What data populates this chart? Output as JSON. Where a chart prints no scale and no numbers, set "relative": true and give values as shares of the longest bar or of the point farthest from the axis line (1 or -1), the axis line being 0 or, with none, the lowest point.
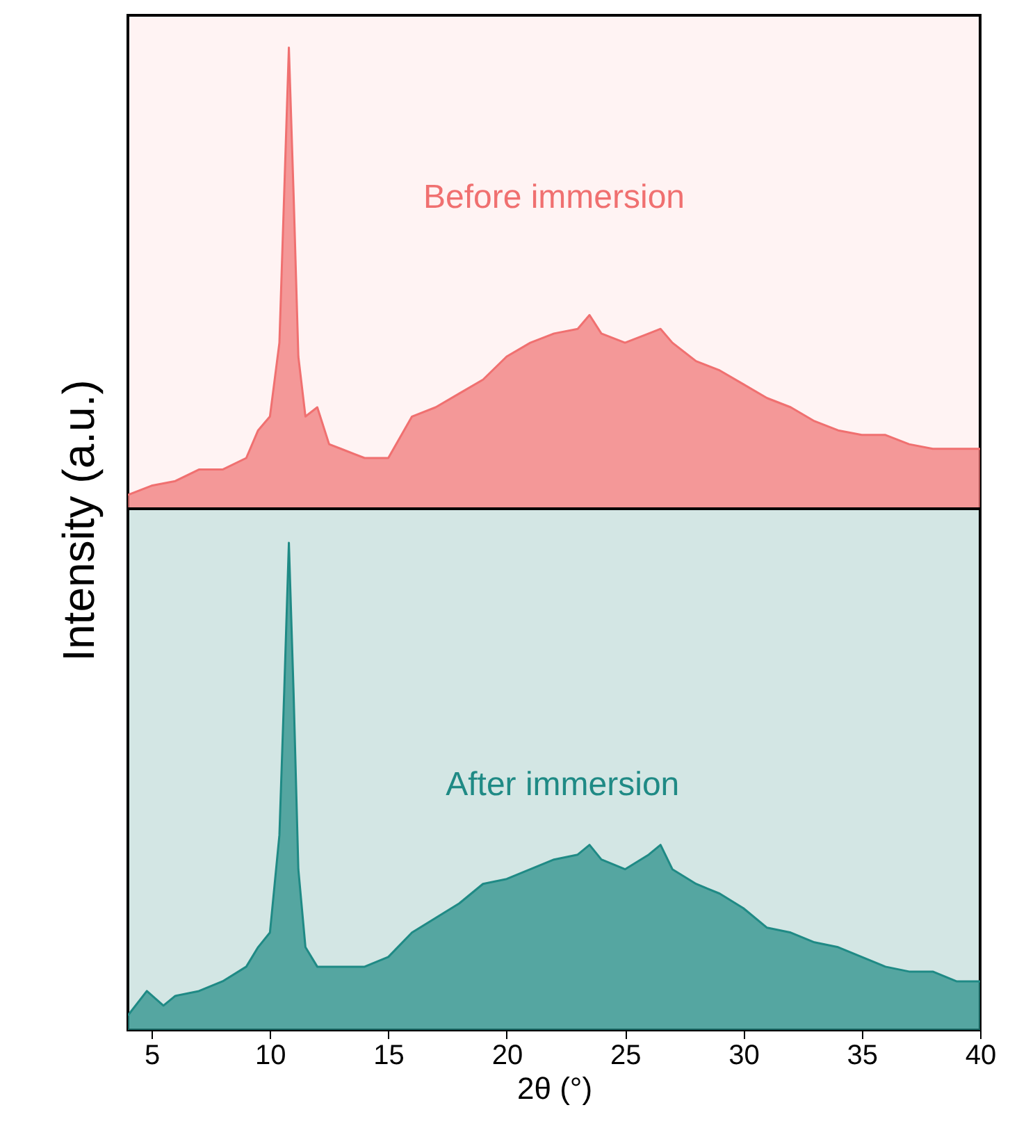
{
  "chart_data": [
    {
      "type": "area",
      "relative": true,
      "ylabel": "Intensity (a.u.)",
      "xlim": [
        4,
        40
      ],
      "tick_labels": false,
      "annotations": [
        "Before immersion"
      ],
      "series": [
        {
          "color": "#f07070",
          "x": [
            4,
            5,
            6,
            7,
            8,
            9,
            9.5,
            10,
            10.4,
            10.6,
            10.8,
            11.0,
            11.2,
            11.5,
            12,
            12.5,
            13,
            14,
            15,
            16,
            17,
            18,
            19,
            20,
            21,
            22,
            23,
            23.5,
            24,
            25,
            26,
            26.5,
            27,
            28,
            29,
            30,
            31,
            32,
            33,
            34,
            35,
            36,
            37,
            38,
            39,
            40
          ],
          "values": [
            0.03,
            0.05,
            0.06,
            0.085,
            0.085,
            0.11,
            0.17,
            0.2,
            0.36,
            0.68,
            1.0,
            0.68,
            0.33,
            0.2,
            0.22,
            0.14,
            0.13,
            0.11,
            0.11,
            0.2,
            0.22,
            0.25,
            0.28,
            0.33,
            0.36,
            0.38,
            0.39,
            0.42,
            0.38,
            0.36,
            0.38,
            0.39,
            0.36,
            0.32,
            0.3,
            0.27,
            0.24,
            0.22,
            0.19,
            0.17,
            0.16,
            0.16,
            0.14,
            0.13,
            0.13,
            0.13
          ]
        }
      ]
    },
    {
      "type": "area",
      "relative": true,
      "xlabel": "2θ (°)",
      "xlim": [
        4,
        40
      ],
      "xticks": [
        5,
        10,
        15,
        20,
        25,
        30,
        35,
        40
      ],
      "tick_labels": "x",
      "annotations": [
        "After immersion"
      ],
      "series": [
        {
          "color": "#1f8a85",
          "x": [
            4,
            4.8,
            5.5,
            6,
            7,
            8,
            9,
            9.5,
            10,
            10.4,
            10.6,
            10.8,
            11.0,
            11.2,
            11.5,
            12,
            13,
            14,
            15,
            16,
            17,
            18,
            19,
            20,
            21,
            22,
            23,
            23.5,
            24,
            25,
            26,
            26.5,
            27,
            28,
            29,
            30,
            31,
            32,
            33,
            34,
            35,
            36,
            37,
            38,
            39,
            40
          ],
          "values": [
            0.03,
            0.08,
            0.05,
            0.07,
            0.08,
            0.1,
            0.13,
            0.17,
            0.2,
            0.4,
            0.69,
            1.0,
            0.69,
            0.33,
            0.17,
            0.13,
            0.13,
            0.13,
            0.15,
            0.2,
            0.23,
            0.26,
            0.3,
            0.31,
            0.33,
            0.35,
            0.36,
            0.38,
            0.35,
            0.33,
            0.36,
            0.38,
            0.33,
            0.3,
            0.28,
            0.25,
            0.21,
            0.2,
            0.18,
            0.17,
            0.15,
            0.13,
            0.12,
            0.12,
            0.1,
            0.1
          ]
        }
      ]
    }
  ]
}
